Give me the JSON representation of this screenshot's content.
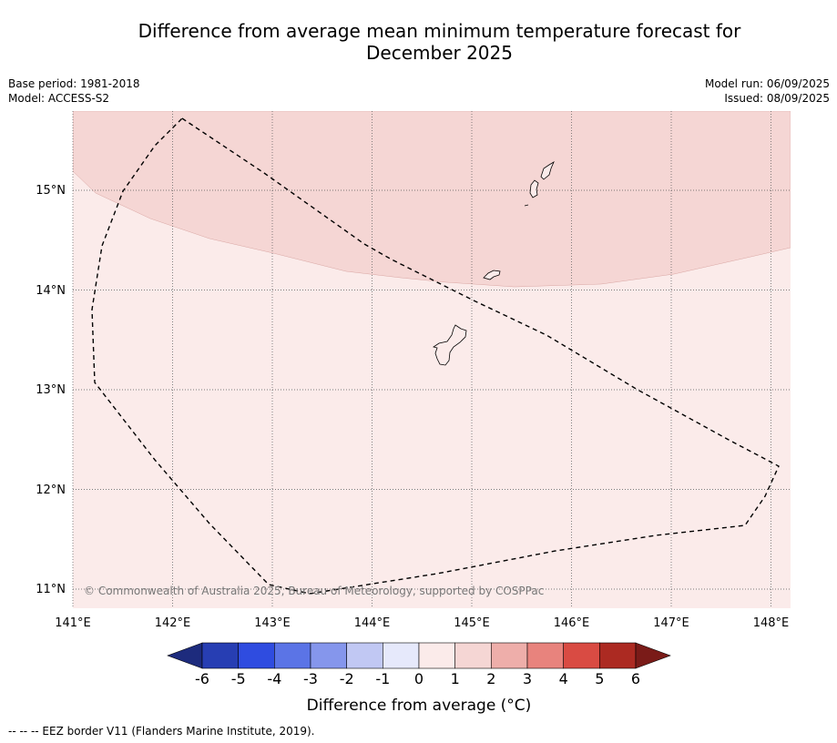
{
  "title_line1": "Difference from average mean minimum temperature forecast for",
  "title_line2": "December 2025",
  "base_period": "Base period: 1981-2018",
  "model": "Model: ACCESS-S2",
  "model_run": "Model run: 06/09/2025",
  "issued": "Issued: 08/09/2025",
  "copyright": "© Commonwealth of Australia 2025, Bureau of Meteorology, supported by COSPPac",
  "lon_ticks": [
    "141°E",
    "142°E",
    "143°E",
    "144°E",
    "145°E",
    "146°E",
    "147°E",
    "148°E"
  ],
  "lat_ticks": [
    "15°N",
    "14°N",
    "13°N",
    "12°N",
    "11°N"
  ],
  "colorbar": {
    "label": "Difference from average (°C)",
    "ticks": [
      "-6",
      "-5",
      "-4",
      "-3",
      "-2",
      "-1",
      "0",
      "1",
      "2",
      "3",
      "4",
      "5",
      "6"
    ],
    "colors": [
      "#1d2b7d",
      "#273eb3",
      "#2f4ce0",
      "#5b74e6",
      "#8596ec",
      "#c1c8f3",
      "#e6e9fb",
      "#fbebea",
      "#f5d6d4",
      "#eeaeaa",
      "#e8837d",
      "#d94b43",
      "#ac2a22",
      "#7a1b18"
    ]
  },
  "legend_note": "--  --  -- EEZ border V11 (Flanders Marine Institute, 2019).",
  "map": {
    "colors": {
      "band_0_to_1": "#fbebea",
      "band_1_to_2": "#f5d6d4"
    }
  }
}
